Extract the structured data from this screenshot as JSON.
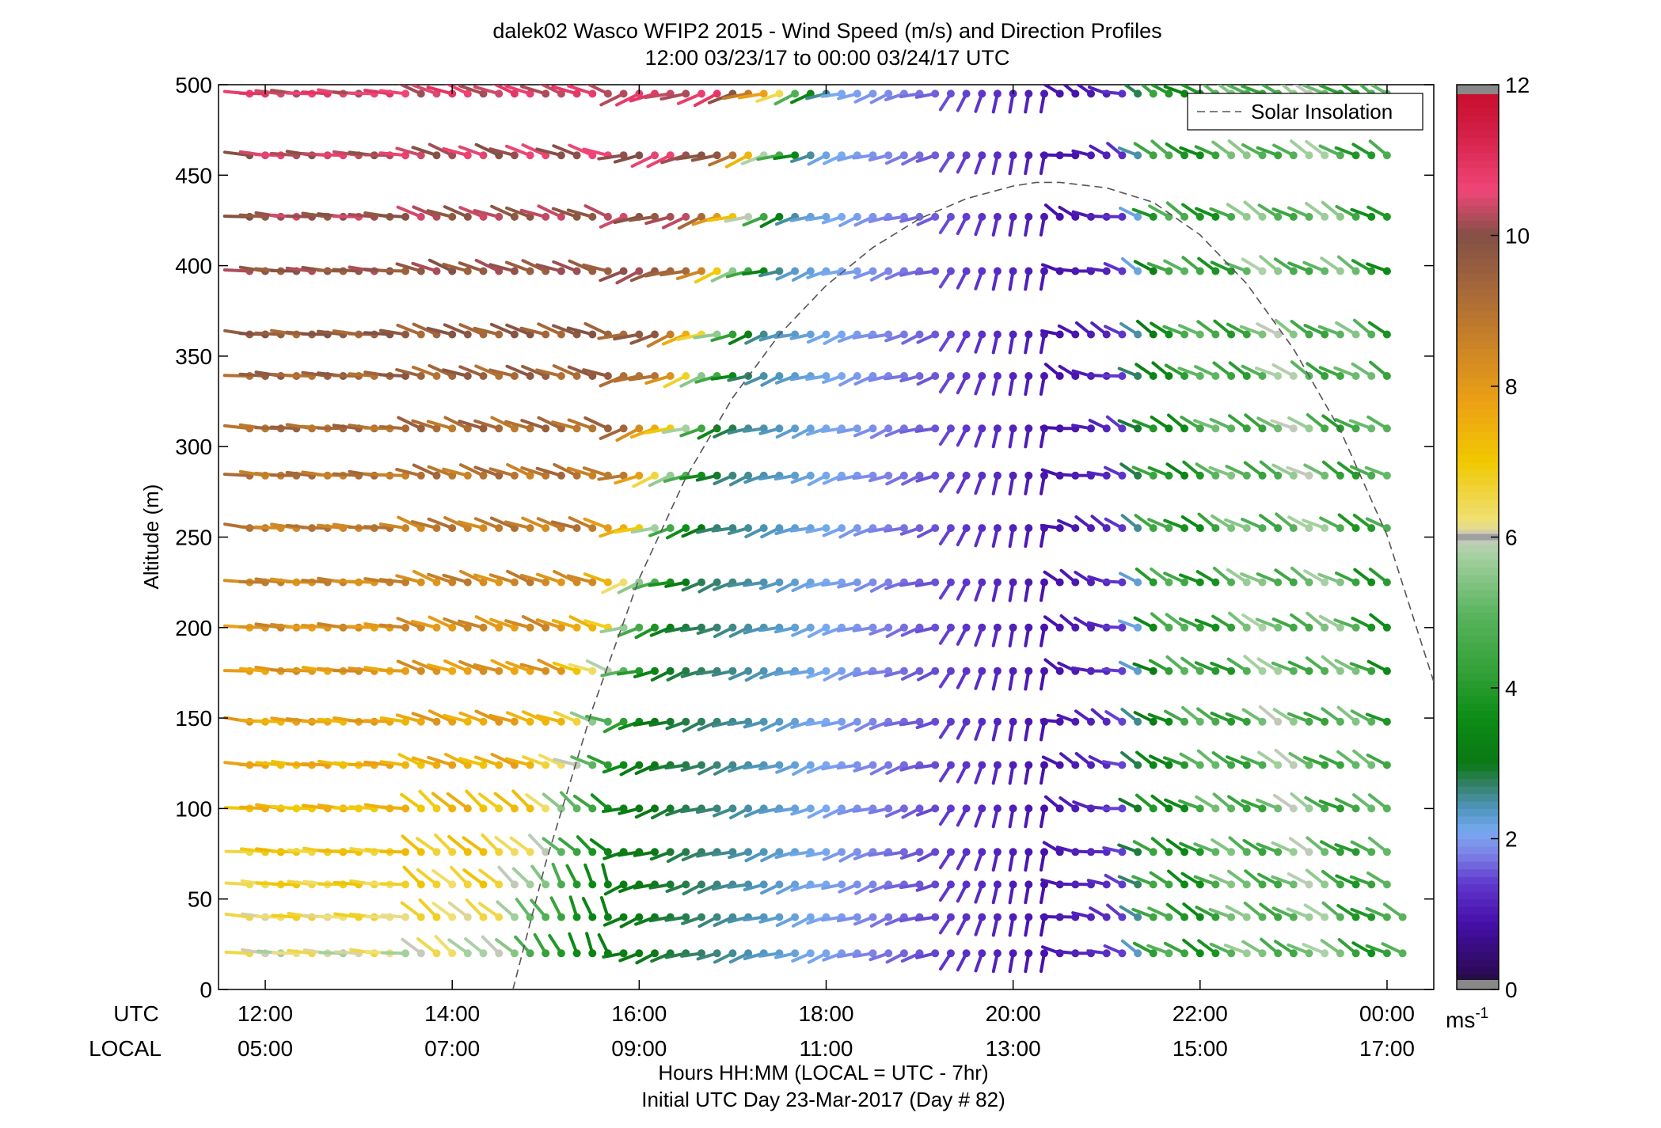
{
  "chart_data": {
    "type": "scatter",
    "title": "dalek02 Wasco WFIP2 2015 - Wind Speed (m/s) and Direction Profiles",
    "subtitle": "12:00 03/23/17 to 00:00 03/24/17  UTC",
    "ylabel": "Altitude (m)",
    "ylim": [
      0,
      500
    ],
    "y_ticks": [
      "0",
      "50",
      "100",
      "150",
      "200",
      "250",
      "300",
      "350",
      "400",
      "450",
      "500"
    ],
    "xlim_hours_utc": [
      11.5,
      24.5
    ],
    "x_tick_hours_utc": [
      12,
      14,
      16,
      18,
      20,
      22,
      24
    ],
    "x_row_labels": [
      "UTC",
      "LOCAL"
    ],
    "utc_ticks": [
      "12:00",
      "14:00",
      "16:00",
      "18:00",
      "20:00",
      "22:00",
      "00:00"
    ],
    "local_ticks": [
      "05:00",
      "07:00",
      "09:00",
      "11:00",
      "13:00",
      "15:00",
      "17:00"
    ],
    "xlabel": "Hours HH:MM  (LOCAL = UTC - 7hr)",
    "xlabel2": "Initial UTC Day 23-Mar-2017 (Day # 82)",
    "legend": {
      "label": "Solar Insolation",
      "placement": "top-right"
    },
    "colorbar": {
      "range": [
        0,
        12
      ],
      "ticks": [
        "0",
        "2",
        "4",
        "6",
        "8",
        "10",
        "12"
      ],
      "unit_label": "ms",
      "unit_exponent": "-1"
    },
    "solar_insolation": {
      "style": "dashed",
      "color": "#555555",
      "points": [
        [
          14.65,
          0
        ],
        [
          15.0,
          70
        ],
        [
          15.5,
          155
        ],
        [
          16.0,
          227
        ],
        [
          16.5,
          283
        ],
        [
          17.0,
          327
        ],
        [
          17.5,
          362
        ],
        [
          18.0,
          389
        ],
        [
          18.5,
          410
        ],
        [
          19.0,
          426
        ],
        [
          19.5,
          437
        ],
        [
          20.0,
          444
        ],
        [
          20.25,
          446
        ],
        [
          20.5,
          446
        ],
        [
          21.0,
          443
        ],
        [
          21.5,
          435
        ],
        [
          22.0,
          417
        ],
        [
          22.5,
          390
        ],
        [
          23.0,
          354
        ],
        [
          23.5,
          309
        ],
        [
          24.0,
          251
        ],
        [
          24.5,
          170
        ]
      ]
    },
    "profile_heights_m": [
      20,
      40,
      58,
      76,
      100,
      124,
      148,
      176,
      200,
      225,
      255,
      284,
      310,
      339,
      362,
      397,
      427,
      461,
      495
    ],
    "barb_times_utc_hours": "11.833 to 24.000 every 0.1667 h (74 columns); the two lowest heights continue to 24.167",
    "speed_field_summary": "barb speed = colour (m/s); direction tilt estimated from arrow angles"
  }
}
